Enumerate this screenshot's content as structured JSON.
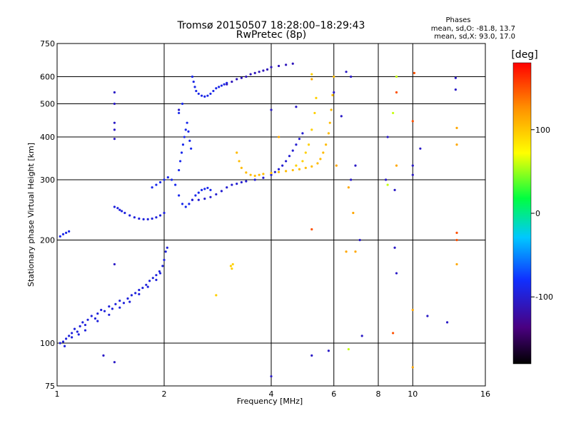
{
  "chart_data": {
    "type": "scatter",
    "title": "Tromsø 20150507 18:28:00–18:29:43",
    "subtitle": "RwPretec (8p)",
    "stats": {
      "heading": "Phases",
      "line1": "mean, sd,O: -81.8, 13.7",
      "line2": "mean, sd,X:  93.0, 17.0"
    },
    "xlabel": "Frequency [MHz]",
    "ylabel": "Stationary phase Virtual Height [km]",
    "x_scale": "log",
    "y_scale": "log",
    "xlim": [
      1,
      16
    ],
    "ylim": [
      75,
      750
    ],
    "x_ticks": [
      1,
      2,
      4,
      6,
      8,
      10,
      16
    ],
    "x_tick_labels": [
      "1",
      "2",
      "4",
      "6",
      "8",
      "10",
      "16"
    ],
    "y_ticks": [
      75,
      100,
      200,
      300,
      400,
      500,
      600,
      750
    ],
    "y_tick_labels": [
      "75",
      "100",
      "200",
      "300",
      "400",
      "500",
      "600",
      "750"
    ],
    "x_gridlines": [
      2,
      4,
      6,
      8,
      10
    ],
    "y_gridlines": [
      100,
      200,
      300,
      400,
      500,
      600
    ],
    "colorbar": {
      "label": "[deg]",
      "range": [
        -180,
        180
      ],
      "ticks": [
        100,
        0,
        -100
      ],
      "tick_labels": [
        "100",
        "0",
        "-100"
      ]
    },
    "series": [
      {
        "phase": -95,
        "points": [
          [
            1.02,
            100
          ],
          [
            1.04,
            101
          ],
          [
            1.06,
            103
          ],
          [
            1.08,
            105
          ],
          [
            1.1,
            107
          ],
          [
            1.12,
            110
          ],
          [
            1.14,
            108
          ],
          [
            1.16,
            112
          ],
          [
            1.18,
            115
          ],
          [
            1.2,
            113
          ],
          [
            1.22,
            117
          ],
          [
            1.25,
            120
          ],
          [
            1.28,
            118
          ],
          [
            1.3,
            122
          ],
          [
            1.33,
            125
          ],
          [
            1.36,
            124
          ],
          [
            1.4,
            128
          ],
          [
            1.43,
            126
          ],
          [
            1.46,
            130
          ],
          [
            1.5,
            133
          ],
          [
            1.54,
            131
          ],
          [
            1.58,
            135
          ],
          [
            1.62,
            138
          ],
          [
            1.66,
            140
          ],
          [
            1.7,
            143
          ],
          [
            1.74,
            145
          ],
          [
            1.78,
            148
          ],
          [
            1.82,
            152
          ],
          [
            1.86,
            155
          ],
          [
            1.9,
            158
          ],
          [
            1.94,
            162
          ],
          [
            1.98,
            168
          ],
          [
            2.0,
            175
          ],
          [
            2.02,
            185
          ],
          [
            2.04,
            190
          ],
          [
            1.05,
            98
          ],
          [
            1.1,
            104
          ],
          [
            1.15,
            106
          ],
          [
            1.2,
            109
          ],
          [
            1.3,
            116
          ],
          [
            1.4,
            121
          ],
          [
            1.5,
            127
          ],
          [
            1.6,
            132
          ],
          [
            1.7,
            139
          ],
          [
            1.8,
            146
          ],
          [
            1.9,
            153
          ],
          [
            1.95,
            160
          ]
        ]
      },
      {
        "phase": -90,
        "points": [
          [
            1.02,
            205
          ],
          [
            1.04,
            208
          ],
          [
            1.06,
            210
          ],
          [
            1.08,
            212
          ]
        ]
      },
      {
        "phase": -95,
        "points": [
          [
            1.5,
            245
          ],
          [
            1.55,
            240
          ],
          [
            1.6,
            236
          ],
          [
            1.65,
            233
          ],
          [
            1.7,
            231
          ],
          [
            1.75,
            230
          ],
          [
            1.8,
            230
          ],
          [
            1.85,
            231
          ],
          [
            1.9,
            233
          ],
          [
            1.95,
            236
          ],
          [
            2.0,
            240
          ],
          [
            1.45,
            250
          ],
          [
            1.48,
            248
          ],
          [
            1.52,
            243
          ]
        ]
      },
      {
        "phase": -88,
        "points": [
          [
            1.85,
            285
          ],
          [
            1.9,
            290
          ],
          [
            1.95,
            295
          ],
          [
            2.0,
            300
          ],
          [
            2.05,
            305
          ],
          [
            2.1,
            300
          ],
          [
            2.15,
            290
          ],
          [
            2.2,
            270
          ],
          [
            2.25,
            255
          ],
          [
            2.3,
            250
          ],
          [
            2.35,
            255
          ],
          [
            2.4,
            262
          ],
          [
            2.45,
            270
          ],
          [
            2.5,
            275
          ],
          [
            2.55,
            280
          ],
          [
            2.6,
            282
          ],
          [
            2.65,
            284
          ],
          [
            2.7,
            280
          ],
          [
            2.2,
            320
          ],
          [
            2.22,
            340
          ],
          [
            2.24,
            360
          ],
          [
            2.26,
            380
          ],
          [
            2.28,
            400
          ],
          [
            2.3,
            420
          ],
          [
            2.32,
            440
          ],
          [
            2.34,
            415
          ],
          [
            2.36,
            390
          ],
          [
            2.38,
            370
          ],
          [
            2.25,
            500
          ],
          [
            2.2,
            470
          ]
        ]
      },
      {
        "phase": -100,
        "points": [
          [
            2.4,
            262
          ],
          [
            2.5,
            262
          ],
          [
            2.6,
            264
          ],
          [
            2.7,
            267
          ],
          [
            2.8,
            272
          ],
          [
            2.9,
            278
          ],
          [
            3.0,
            285
          ],
          [
            3.1,
            290
          ],
          [
            3.2,
            292
          ],
          [
            3.3,
            295
          ],
          [
            3.4,
            297
          ],
          [
            3.6,
            300
          ],
          [
            3.8,
            304
          ],
          [
            4.0,
            310
          ],
          [
            4.1,
            316
          ],
          [
            4.2,
            322
          ],
          [
            4.3,
            330
          ],
          [
            4.4,
            340
          ],
          [
            4.5,
            352
          ],
          [
            4.6,
            365
          ],
          [
            4.7,
            380
          ],
          [
            4.8,
            395
          ],
          [
            4.9,
            410
          ]
        ]
      },
      {
        "phase": -90,
        "points": [
          [
            2.4,
            600
          ],
          [
            2.42,
            580
          ],
          [
            2.44,
            560
          ],
          [
            2.46,
            545
          ],
          [
            2.5,
            535
          ],
          [
            2.55,
            528
          ],
          [
            2.6,
            525
          ],
          [
            2.65,
            528
          ],
          [
            2.7,
            535
          ],
          [
            2.75,
            545
          ],
          [
            2.8,
            555
          ],
          [
            2.85,
            560
          ],
          [
            2.9,
            565
          ],
          [
            2.95,
            570
          ],
          [
            3.0,
            575
          ]
        ]
      },
      {
        "phase": -110,
        "points": [
          [
            3.0,
            570
          ],
          [
            3.1,
            580
          ],
          [
            3.2,
            590
          ],
          [
            3.3,
            595
          ],
          [
            3.4,
            600
          ],
          [
            3.5,
            610
          ],
          [
            3.6,
            615
          ],
          [
            3.7,
            620
          ],
          [
            3.8,
            625
          ],
          [
            3.9,
            630
          ],
          [
            4.0,
            640
          ],
          [
            4.2,
            645
          ],
          [
            4.4,
            650
          ],
          [
            4.6,
            655
          ]
        ]
      },
      {
        "phase": 105,
        "points": [
          [
            3.2,
            360
          ],
          [
            3.25,
            340
          ],
          [
            3.3,
            325
          ],
          [
            3.4,
            315
          ],
          [
            3.5,
            310
          ],
          [
            3.6,
            308
          ],
          [
            3.7,
            310
          ],
          [
            3.8,
            312
          ],
          [
            4.0,
            314
          ],
          [
            4.2,
            316
          ],
          [
            4.4,
            318
          ],
          [
            4.6,
            320
          ],
          [
            4.8,
            322
          ],
          [
            5.0,
            325
          ],
          [
            5.2,
            328
          ],
          [
            5.4,
            335
          ],
          [
            5.5,
            345
          ],
          [
            5.6,
            360
          ],
          [
            5.7,
            380
          ],
          [
            5.8,
            410
          ],
          [
            5.85,
            440
          ],
          [
            5.9,
            480
          ],
          [
            5.95,
            530
          ],
          [
            6.0,
            600
          ]
        ]
      },
      {
        "phase": 95,
        "points": [
          [
            4.7,
            330
          ],
          [
            4.9,
            340
          ],
          [
            5.0,
            360
          ],
          [
            5.1,
            380
          ],
          [
            5.2,
            420
          ],
          [
            5.3,
            470
          ],
          [
            5.35,
            520
          ],
          [
            3.1,
            165
          ],
          [
            3.12,
            170
          ],
          [
            3.08,
            168
          ],
          [
            2.8,
            138
          ],
          [
            5.2,
            610
          ]
        ]
      },
      {
        "phase": -105,
        "points": [
          [
            1.45,
            395
          ],
          [
            1.45,
            420
          ],
          [
            1.45,
            440
          ],
          [
            1.45,
            540
          ],
          [
            1.45,
            500
          ],
          [
            1.45,
            170
          ],
          [
            1.35,
            92
          ],
          [
            1.45,
            88
          ],
          [
            2.2,
            480
          ],
          [
            4.7,
            490
          ],
          [
            5.8,
            95
          ],
          [
            6.5,
            620
          ],
          [
            6.7,
            600
          ],
          [
            6.7,
            300
          ],
          [
            6.9,
            330
          ],
          [
            7.1,
            200
          ],
          [
            8.5,
            400
          ],
          [
            8.9,
            280
          ],
          [
            8.9,
            190
          ],
          [
            9.0,
            160
          ],
          [
            10.0,
            310
          ],
          [
            10.0,
            330
          ],
          [
            10.5,
            370
          ],
          [
            11.0,
            120
          ],
          [
            12.5,
            115
          ],
          [
            13.2,
            595
          ],
          [
            13.2,
            550
          ],
          [
            4.0,
            480
          ],
          [
            4.0,
            80
          ],
          [
            5.2,
            92
          ],
          [
            6.0,
            540
          ],
          [
            6.3,
            460
          ],
          [
            7.2,
            105
          ],
          [
            8.4,
            300
          ]
        ]
      },
      {
        "phase": 60,
        "points": [
          [
            8.8,
            470
          ],
          [
            6.6,
            96
          ],
          [
            8.5,
            290
          ],
          [
            9.0,
            600
          ]
        ]
      },
      {
        "phase": 150,
        "points": [
          [
            9.0,
            540
          ],
          [
            8.8,
            107
          ],
          [
            13.3,
            200
          ],
          [
            13.3,
            210
          ],
          [
            10.1,
            615
          ],
          [
            5.2,
            215
          ],
          [
            10.0,
            445
          ]
        ]
      },
      {
        "phase": 115,
        "points": [
          [
            6.5,
            185
          ],
          [
            6.6,
            285
          ],
          [
            6.8,
            240
          ],
          [
            6.9,
            185
          ],
          [
            9.0,
            330
          ],
          [
            10.0,
            125
          ],
          [
            10.0,
            85
          ],
          [
            13.3,
            425
          ],
          [
            13.3,
            380
          ],
          [
            13.3,
            170
          ],
          [
            4.2,
            400
          ],
          [
            5.2,
            590
          ],
          [
            6.1,
            330
          ]
        ]
      }
    ]
  }
}
